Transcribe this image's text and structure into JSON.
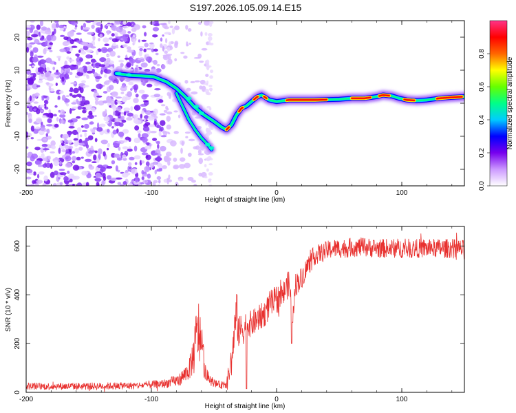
{
  "title": "S197.2026.105.09.14.E15",
  "spectrogram": {
    "type": "heatmap",
    "xlabel": "Height of straight line (km)",
    "ylabel": "Frequency (Hz)",
    "xlim": [
      -200,
      150
    ],
    "ylim": [
      -25,
      25
    ],
    "xticks": [
      -200,
      -100,
      0,
      100
    ],
    "xtick_labels": [
      "-200",
      "-100",
      "0",
      "100"
    ],
    "yticks": [
      -20,
      -10,
      0,
      10,
      20
    ],
    "ytick_labels": [
      "-20",
      "-10",
      "0",
      "10",
      "20"
    ],
    "ridge": {
      "x": [
        -128,
        -118,
        -108,
        -98,
        -88,
        -80,
        -73,
        -66,
        -58,
        -50,
        -44,
        -40,
        -36,
        -32,
        -28,
        -24,
        -20,
        -16,
        -12,
        -6,
        0,
        10,
        30,
        50,
        60,
        70,
        80,
        85,
        92,
        98,
        104,
        112,
        120,
        130,
        140,
        150
      ],
      "y": [
        9,
        8.5,
        8.3,
        8,
        6.5,
        4.5,
        2,
        -1,
        -3.5,
        -5.5,
        -7.2,
        -8,
        -6.5,
        -3.5,
        -1.5,
        -0.8,
        0.5,
        1.8,
        2.5,
        1.0,
        0.5,
        1.0,
        1.0,
        1.2,
        1.5,
        1.5,
        2.0,
        2.5,
        2.2,
        1.5,
        1.0,
        0.8,
        1.0,
        1.5,
        1.8,
        2.0
      ]
    },
    "branch": {
      "x": [
        -80,
        -75,
        -70,
        -65,
        -60,
        -55,
        -52
      ],
      "y": [
        3,
        -1,
        -5,
        -8,
        -10.5,
        -12.5,
        -14
      ]
    },
    "colorbar": {
      "label": "Normalized spectral amplitude",
      "ticks": [
        0.0,
        0.2,
        0.4,
        0.6,
        0.8
      ],
      "tick_labels": [
        "0.0",
        "0.2",
        "0.4",
        "0.6",
        "0.8"
      ],
      "colors": [
        "#ffffff",
        "#cc99ff",
        "#7700ee",
        "#0000ff",
        "#00ccff",
        "#00ff88",
        "#66ff00",
        "#ffff00",
        "#ff6600",
        "#ff0000",
        "#ff3388"
      ]
    }
  },
  "snr": {
    "type": "line",
    "xlabel": "Height of straight line (km)",
    "ylabel": "SNR (10 * v/v)",
    "xlim": [
      -200,
      150
    ],
    "ylim": [
      0,
      680
    ],
    "xticks": [
      -200,
      -100,
      0,
      100
    ],
    "xtick_labels": [
      "-200",
      "-100",
      "0",
      "100"
    ],
    "yticks": [
      0,
      200,
      400,
      600
    ],
    "ytick_labels": [
      "0",
      "200",
      "400",
      "600"
    ],
    "color": "#e8312f",
    "envelope": {
      "x": [
        -200,
        -150,
        -110,
        -90,
        -78,
        -70,
        -66,
        -64,
        -62,
        -60,
        -58,
        -56,
        -52,
        -48,
        -44,
        -40,
        -36,
        -34,
        -32,
        -30,
        -28,
        -26,
        -24,
        -22,
        -20,
        -15,
        -10,
        -5,
        0,
        5,
        10,
        13,
        15,
        20,
        25,
        30,
        35,
        40,
        45,
        50,
        55,
        60,
        70,
        80,
        90,
        100,
        110,
        120,
        130,
        140,
        150
      ],
      "mean": [
        25,
        25,
        28,
        35,
        50,
        90,
        160,
        230,
        250,
        200,
        120,
        70,
        45,
        35,
        30,
        40,
        120,
        230,
        330,
        240,
        270,
        250,
        290,
        280,
        280,
        300,
        320,
        360,
        380,
        400,
        450,
        300,
        440,
        470,
        520,
        560,
        570,
        580,
        590,
        590,
        590,
        595,
        595,
        590,
        590,
        590,
        590,
        590,
        590,
        590,
        585
      ],
      "amp": [
        15,
        15,
        15,
        18,
        25,
        40,
        90,
        120,
        140,
        120,
        60,
        30,
        20,
        15,
        15,
        25,
        60,
        80,
        100,
        70,
        60,
        60,
        60,
        55,
        55,
        55,
        55,
        60,
        60,
        55,
        55,
        50,
        50,
        45,
        45,
        40,
        40,
        40,
        40,
        40,
        40,
        40,
        40,
        40,
        40,
        40,
        40,
        40,
        40,
        40,
        40
      ]
    }
  }
}
